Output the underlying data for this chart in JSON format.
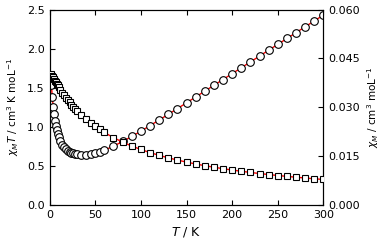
{
  "title": "",
  "xlabel": "$T$ / K",
  "ylabel_left": "$\\chi_M T$ / cm$^3$ K moL$^{-1}$",
  "ylabel_right": "$\\chi_M$ / cm$^3$ moL$^{-1}$",
  "xlim": [
    0,
    300
  ],
  "ylim_left": [
    0.0,
    2.5
  ],
  "ylim_right": [
    0.0,
    0.06
  ],
  "xticks": [
    0,
    50,
    100,
    150,
    200,
    250,
    300
  ],
  "yticks_left": [
    0.0,
    0.5,
    1.0,
    1.5,
    2.0,
    2.5
  ],
  "yticks_right": [
    0.0,
    0.015,
    0.03,
    0.045,
    0.06
  ],
  "fit_color": "#ff0000",
  "marker_size_circle": 5.5,
  "marker_size_square": 4.5,
  "chiMT_start": 1.65,
  "chiMT_min": 0.88,
  "chiMT_min_T": 35,
  "chiMT_end": 2.4,
  "chiM_C": 0.085,
  "chiM_theta": -1.5
}
